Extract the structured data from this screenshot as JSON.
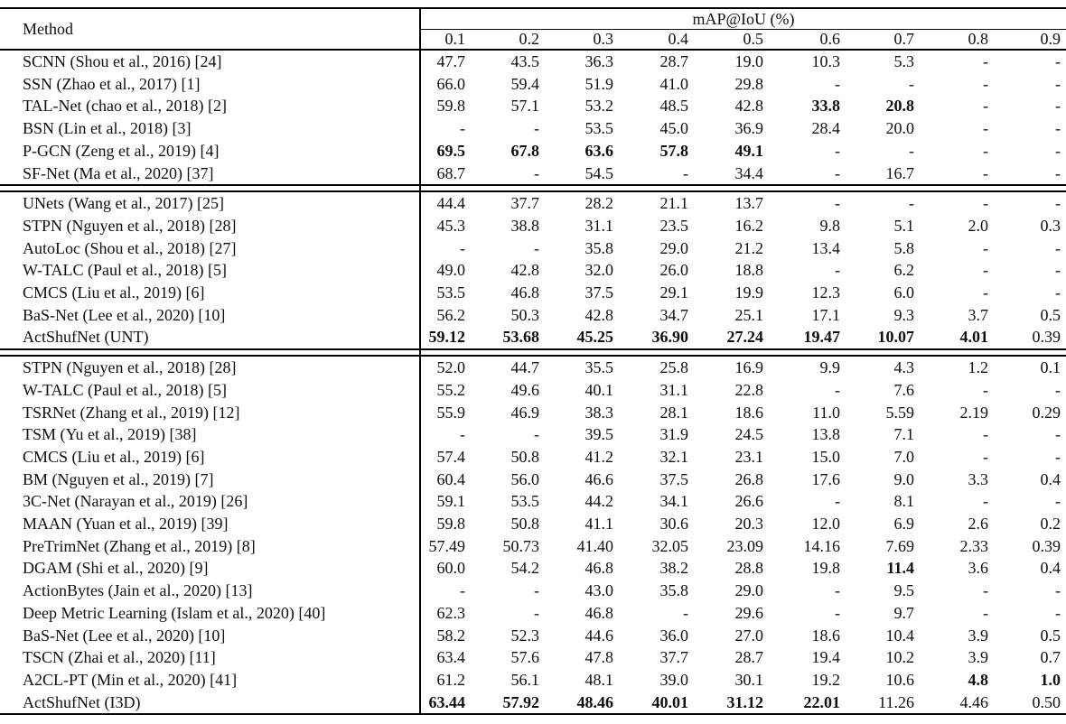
{
  "colors": {
    "background": "#ffffff",
    "text": "#0f0f0f",
    "rules": "#000000"
  },
  "table": {
    "method_header": "Method",
    "group_header": "mAP@IoU (%)",
    "iou_thresholds": [
      "0.1",
      "0.2",
      "0.3",
      "0.4",
      "0.5",
      "0.6",
      "0.7",
      "0.8",
      "0.9"
    ],
    "sections": [
      {
        "rows": [
          {
            "method": "SCNN (Shou et al., 2016) [24]",
            "values": [
              "47.7",
              "43.5",
              "36.3",
              "28.7",
              "19.0",
              "10.3",
              "5.3",
              "-",
              "-"
            ],
            "bold": []
          },
          {
            "method": "SSN (Zhao et al., 2017) [1]",
            "values": [
              "66.0",
              "59.4",
              "51.9",
              "41.0",
              "29.8",
              "-",
              "-",
              "-",
              "-"
            ],
            "bold": []
          },
          {
            "method": "TAL-Net (chao et al., 2018) [2]",
            "values": [
              "59.8",
              "57.1",
              "53.2",
              "48.5",
              "42.8",
              "33.8",
              "20.8",
              "-",
              "-"
            ],
            "bold": [
              5,
              6
            ]
          },
          {
            "method": "BSN (Lin et al., 2018) [3]",
            "values": [
              "-",
              "-",
              "53.5",
              "45.0",
              "36.9",
              "28.4",
              "20.0",
              "-",
              "-"
            ],
            "bold": []
          },
          {
            "method": "P-GCN (Zeng et al., 2019) [4]",
            "values": [
              "69.5",
              "67.8",
              "63.6",
              "57.8",
              "49.1",
              "-",
              "-",
              "-",
              "-"
            ],
            "bold": [
              0,
              1,
              2,
              3,
              4
            ]
          },
          {
            "method": "SF-Net (Ma et al., 2020) [37]",
            "values": [
              "68.7",
              "-",
              "54.5",
              "-",
              "34.4",
              "-",
              "16.7",
              "-",
              "-"
            ],
            "bold": []
          }
        ]
      },
      {
        "rows": [
          {
            "method": "UNets (Wang et al., 2017) [25]",
            "values": [
              "44.4",
              "37.7",
              "28.2",
              "21.1",
              "13.7",
              "-",
              "-",
              "-",
              "-"
            ],
            "bold": []
          },
          {
            "method": "STPN (Nguyen et al., 2018) [28]",
            "values": [
              "45.3",
              "38.8",
              "31.1",
              "23.5",
              "16.2",
              "9.8",
              "5.1",
              "2.0",
              "0.3"
            ],
            "bold": []
          },
          {
            "method": "AutoLoc (Shou et al., 2018) [27]",
            "values": [
              "-",
              "-",
              "35.8",
              "29.0",
              "21.2",
              "13.4",
              "5.8",
              "-",
              "-"
            ],
            "bold": []
          },
          {
            "method": "W-TALC (Paul et al., 2018) [5]",
            "values": [
              "49.0",
              "42.8",
              "32.0",
              "26.0",
              "18.8",
              "-",
              "6.2",
              "-",
              "-"
            ],
            "bold": []
          },
          {
            "method": "CMCS (Liu et al., 2019) [6]",
            "values": [
              "53.5",
              "46.8",
              "37.5",
              "29.1",
              "19.9",
              "12.3",
              "6.0",
              "-",
              "-"
            ],
            "bold": []
          },
          {
            "method": "BaS-Net (Lee et al., 2020) [10]",
            "values": [
              "56.2",
              "50.3",
              "42.8",
              "34.7",
              "25.1",
              "17.1",
              "9.3",
              "3.7",
              "0.5"
            ],
            "bold": []
          },
          {
            "method": "ActShufNet (UNT)",
            "values": [
              "59.12",
              "53.68",
              "45.25",
              "36.90",
              "27.24",
              "19.47",
              "10.07",
              "4.01",
              "0.39"
            ],
            "bold": [
              0,
              1,
              2,
              3,
              4,
              5,
              6,
              7
            ]
          }
        ]
      },
      {
        "rows": [
          {
            "method": "STPN (Nguyen et al., 2018) [28]",
            "values": [
              "52.0",
              "44.7",
              "35.5",
              "25.8",
              "16.9",
              "9.9",
              "4.3",
              "1.2",
              "0.1"
            ],
            "bold": []
          },
          {
            "method": "W-TALC (Paul et al., 2018) [5]",
            "values": [
              "55.2",
              "49.6",
              "40.1",
              "31.1",
              "22.8",
              "-",
              "7.6",
              "-",
              "-"
            ],
            "bold": []
          },
          {
            "method": "TSRNet (Zhang et al., 2019) [12]",
            "values": [
              "55.9",
              "46.9",
              "38.3",
              "28.1",
              "18.6",
              "11.0",
              "5.59",
              "2.19",
              "0.29"
            ],
            "bold": []
          },
          {
            "method": "TSM (Yu et al., 2019) [38]",
            "values": [
              "-",
              "-",
              "39.5",
              "31.9",
              "24.5",
              "13.8",
              "7.1",
              "-",
              "-"
            ],
            "bold": []
          },
          {
            "method": "CMCS (Liu et al., 2019) [6]",
            "values": [
              "57.4",
              "50.8",
              "41.2",
              "32.1",
              "23.1",
              "15.0",
              "7.0",
              "-",
              "-"
            ],
            "bold": []
          },
          {
            "method": "BM (Nguyen et al., 2019) [7]",
            "values": [
              "60.4",
              "56.0",
              "46.6",
              "37.5",
              "26.8",
              "17.6",
              "9.0",
              "3.3",
              "0.4"
            ],
            "bold": []
          },
          {
            "method": "3C-Net (Narayan et al., 2019) [26]",
            "values": [
              "59.1",
              "53.5",
              "44.2",
              "34.1",
              "26.6",
              "-",
              "8.1",
              "-",
              "-"
            ],
            "bold": []
          },
          {
            "method": "MAAN (Yuan et al., 2019) [39]",
            "values": [
              "59.8",
              "50.8",
              "41.1",
              "30.6",
              "20.3",
              "12.0",
              "6.9",
              "2.6",
              "0.2"
            ],
            "bold": []
          },
          {
            "method": "PreTrimNet (Zhang et al., 2019) [8]",
            "values": [
              "57.49",
              "50.73",
              "41.40",
              "32.05",
              "23.09",
              "14.16",
              "7.69",
              "2.33",
              "0.39"
            ],
            "bold": []
          },
          {
            "method": "DGAM (Shi et al., 2020) [9]",
            "values": [
              "60.0",
              "54.2",
              "46.8",
              "38.2",
              "28.8",
              "19.8",
              "11.4",
              "3.6",
              "0.4"
            ],
            "bold": [
              6
            ]
          },
          {
            "method": "ActionBytes (Jain et al., 2020) [13]",
            "values": [
              "-",
              "-",
              "43.0",
              "35.8",
              "29.0",
              "-",
              "9.5",
              "-",
              "-"
            ],
            "bold": []
          },
          {
            "method": "Deep Metric Learning (Islam et al., 2020) [40]",
            "values": [
              "62.3",
              "-",
              "46.8",
              "-",
              "29.6",
              "-",
              "9.7",
              "-",
              "-"
            ],
            "bold": []
          },
          {
            "method": "BaS-Net (Lee et al., 2020) [10]",
            "values": [
              "58.2",
              "52.3",
              "44.6",
              "36.0",
              "27.0",
              "18.6",
              "10.4",
              "3.9",
              "0.5"
            ],
            "bold": []
          },
          {
            "method": "TSCN (Zhai et al., 2020) [11]",
            "values": [
              "63.4",
              "57.6",
              "47.8",
              "37.7",
              "28.7",
              "19.4",
              "10.2",
              "3.9",
              "0.7"
            ],
            "bold": []
          },
          {
            "method": "A2CL-PT (Min et al., 2020) [41]",
            "values": [
              "61.2",
              "56.1",
              "48.1",
              "39.0",
              "30.1",
              "19.2",
              "10.6",
              "4.8",
              "1.0"
            ],
            "bold": [
              7,
              8
            ]
          },
          {
            "method": "ActShufNet (I3D)",
            "values": [
              "63.44",
              "57.92",
              "48.46",
              "40.01",
              "31.12",
              "22.01",
              "11.26",
              "4.46",
              "0.50"
            ],
            "bold": [
              0,
              1,
              2,
              3,
              4,
              5
            ]
          }
        ]
      }
    ]
  }
}
